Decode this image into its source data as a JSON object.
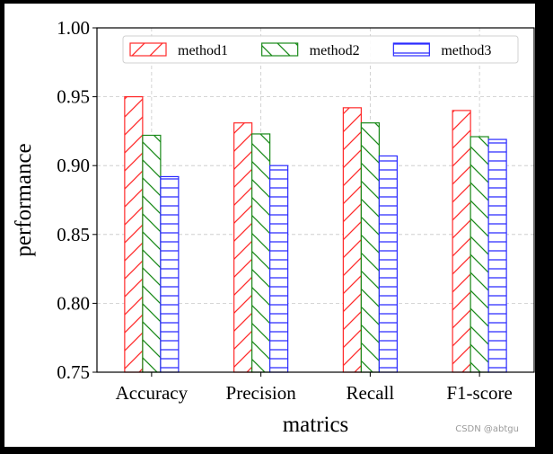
{
  "chart_data": {
    "type": "bar",
    "xlabel": "matrics",
    "ylabel": "performance",
    "categories": [
      "Accuracy",
      "Precision",
      "Recall",
      "F1-score"
    ],
    "ylim": [
      0.75,
      1.0
    ],
    "yticks": [
      "0.75",
      "0.80",
      "0.85",
      "0.90",
      "0.95",
      "1.00"
    ],
    "ytick_values": [
      0.75,
      0.8,
      0.85,
      0.9,
      0.95,
      1.0
    ],
    "grid": true,
    "legend_position": "top",
    "series": [
      {
        "name": "method1",
        "values": [
          0.95,
          0.931,
          0.942,
          0.94
        ],
        "color": "#ff2a2a",
        "hatch": "diagonal-forward"
      },
      {
        "name": "method2",
        "values": [
          0.922,
          0.923,
          0.931,
          0.921
        ],
        "color": "#1a8a1a",
        "hatch": "diagonal-back"
      },
      {
        "name": "method3",
        "values": [
          0.892,
          0.9,
          0.907,
          0.919
        ],
        "color": "#2b2bff",
        "hatch": "horizontal"
      }
    ]
  },
  "watermark": "CSDN @abtgu"
}
